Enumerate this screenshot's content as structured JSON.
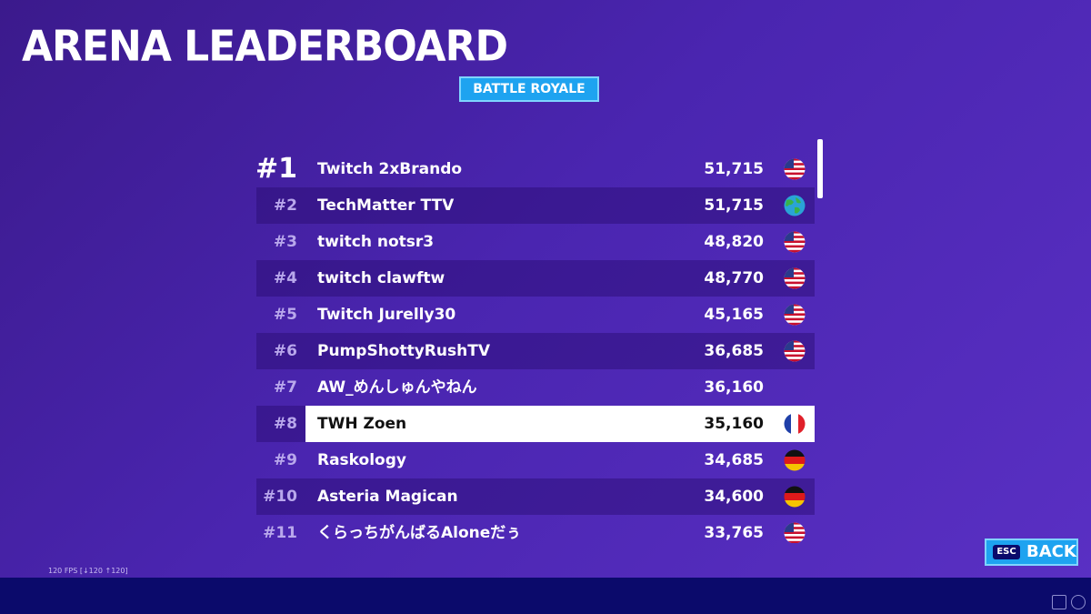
{
  "header": {
    "title": "ARENA LEADERBOARD",
    "tab": "BATTLE ROYALE"
  },
  "leaderboard": {
    "rows": [
      [
        "#1",
        "Twitch 2xBrando",
        "51,715"
      ],
      [
        "#2",
        "TechMatter TTV",
        "51,715"
      ],
      [
        "#3",
        "twitch notsr3",
        "48,820"
      ],
      [
        "#4",
        "twitch clawftw",
        "48,770"
      ],
      [
        "#5",
        "Twitch Jurelly30",
        "45,165"
      ],
      [
        "#6",
        "PumpShottyRushTV",
        "36,685"
      ],
      [
        "#7",
        "AW_めんしゅんやねん",
        "36,160"
      ],
      [
        "#8",
        "TWH Zoen",
        "35,160"
      ],
      [
        "#9",
        "Raskology",
        "34,685"
      ],
      [
        "#10",
        "Asteria Magican",
        "34,600"
      ],
      [
        "#11",
        "くらっちがんばるAloneだぅ",
        "33,765"
      ]
    ]
  },
  "footer": {
    "fps": "120 FPS [↓120 ↑120]",
    "back_key": "ESC",
    "back_label": "BACK"
  }
}
